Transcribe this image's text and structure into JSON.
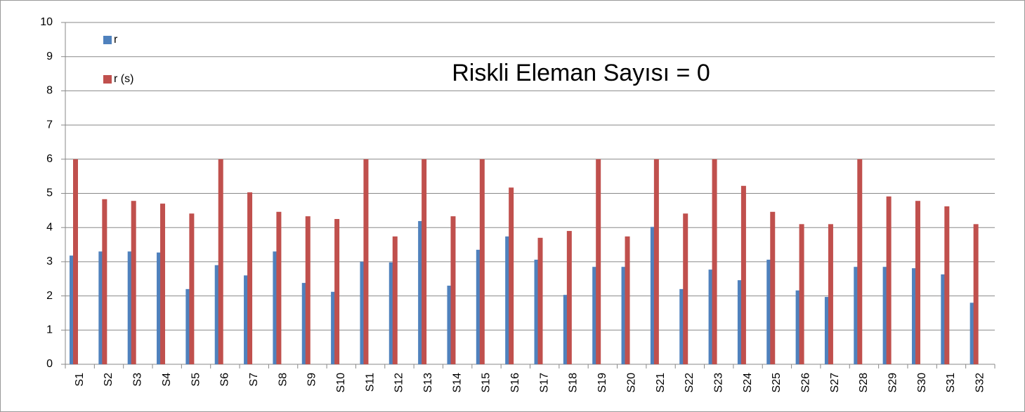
{
  "chart_data": {
    "type": "bar",
    "annotation": "Riskli Eleman Sayısı = 0",
    "categories": [
      "S1",
      "S2",
      "S3",
      "S4",
      "S5",
      "S6",
      "S7",
      "S8",
      "S9",
      "S10",
      "S11",
      "S12",
      "S13",
      "S14",
      "S15",
      "S16",
      "S17",
      "S18",
      "S19",
      "S20",
      "S21",
      "S22",
      "S23",
      "S24",
      "S25",
      "S26",
      "S27",
      "S28",
      "S29",
      "S30",
      "S31",
      "S32"
    ],
    "series": [
      {
        "name": "r",
        "color": "#4f81bd",
        "values": [
          3.18,
          3.3,
          3.3,
          3.27,
          2.2,
          2.9,
          2.6,
          3.3,
          2.38,
          2.12,
          3.0,
          2.98,
          4.19,
          2.3,
          3.35,
          3.74,
          3.06,
          2.03,
          2.85,
          2.85,
          4.02,
          2.2,
          2.77,
          2.46,
          3.06,
          2.16,
          1.97,
          2.85,
          2.85,
          2.81,
          2.63,
          1.8
        ]
      },
      {
        "name": "r (s)",
        "color": "#c0504d",
        "values": [
          6,
          4.83,
          4.78,
          4.7,
          4.41,
          6,
          5.03,
          4.46,
          4.33,
          4.25,
          6,
          3.74,
          6,
          4.33,
          6,
          5.17,
          3.7,
          3.9,
          6,
          3.74,
          6,
          4.41,
          6,
          5.22,
          4.46,
          4.1,
          4.1,
          6,
          4.91,
          4.78,
          4.62,
          4.1
        ]
      }
    ],
    "ylim": [
      0,
      10
    ],
    "yticks": [
      0,
      1,
      2,
      3,
      4,
      5,
      6,
      7,
      8,
      9,
      10
    ],
    "grid": true
  }
}
